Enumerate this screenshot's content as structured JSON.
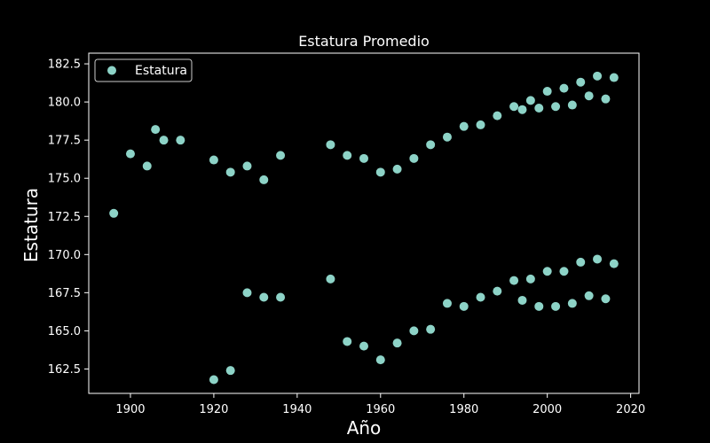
{
  "chart_data": {
    "type": "scatter",
    "title": "Estatura Promedio",
    "xlabel": "Año",
    "ylabel": "Estatura",
    "xlim": [
      1890,
      2022
    ],
    "ylim": [
      160.9,
      183.2
    ],
    "xticks": [
      1900,
      1920,
      1940,
      1960,
      1980,
      2000,
      2020
    ],
    "yticks": [
      162.5,
      165.0,
      167.5,
      170.0,
      172.5,
      175.0,
      177.5,
      180.0,
      182.5
    ],
    "xtick_labels": [
      "1900",
      "1920",
      "1940",
      "1960",
      "1980",
      "2000",
      "2020"
    ],
    "ytick_labels": [
      "162.5",
      "165.0",
      "167.5",
      "170.0",
      "172.5",
      "175.0",
      "177.5",
      "180.0",
      "182.5"
    ],
    "grid": false,
    "legend_position": "top-left",
    "colors": {
      "background": "#000000",
      "marker": "#8dd3c7",
      "text": "#ffffff"
    },
    "series": [
      {
        "name": "Estatura",
        "points": [
          [
            1896,
            172.7
          ],
          [
            1900,
            176.6
          ],
          [
            1904,
            175.8
          ],
          [
            1906,
            178.2
          ],
          [
            1908,
            177.5
          ],
          [
            1912,
            177.5
          ],
          [
            1920,
            176.2
          ],
          [
            1924,
            175.4
          ],
          [
            1928,
            175.8
          ],
          [
            1932,
            174.9
          ],
          [
            1936,
            176.5
          ],
          [
            1948,
            177.2
          ],
          [
            1952,
            176.5
          ],
          [
            1956,
            176.3
          ],
          [
            1960,
            175.4
          ],
          [
            1964,
            175.6
          ],
          [
            1968,
            176.3
          ],
          [
            1972,
            177.2
          ],
          [
            1976,
            177.7
          ],
          [
            1980,
            178.4
          ],
          [
            1984,
            178.5
          ],
          [
            1988,
            179.1
          ],
          [
            1992,
            179.7
          ],
          [
            1994,
            179.5
          ],
          [
            1996,
            180.1
          ],
          [
            1998,
            179.6
          ],
          [
            2000,
            180.7
          ],
          [
            2002,
            179.7
          ],
          [
            2004,
            180.9
          ],
          [
            2006,
            179.8
          ],
          [
            2008,
            181.3
          ],
          [
            2010,
            180.4
          ],
          [
            2012,
            181.7
          ],
          [
            2014,
            180.2
          ],
          [
            2016,
            181.6
          ],
          [
            1920,
            161.8
          ],
          [
            1924,
            162.4
          ],
          [
            1928,
            167.5
          ],
          [
            1932,
            167.2
          ],
          [
            1936,
            167.2
          ],
          [
            1948,
            168.4
          ],
          [
            1952,
            164.3
          ],
          [
            1956,
            164.0
          ],
          [
            1960,
            163.1
          ],
          [
            1964,
            164.2
          ],
          [
            1968,
            165.0
          ],
          [
            1972,
            165.1
          ],
          [
            1976,
            166.8
          ],
          [
            1980,
            166.6
          ],
          [
            1984,
            167.2
          ],
          [
            1988,
            167.6
          ],
          [
            1992,
            168.3
          ],
          [
            1994,
            167.0
          ],
          [
            1996,
            168.4
          ],
          [
            1998,
            166.6
          ],
          [
            2000,
            168.9
          ],
          [
            2002,
            166.6
          ],
          [
            2004,
            168.9
          ],
          [
            2006,
            166.8
          ],
          [
            2008,
            169.5
          ],
          [
            2010,
            167.3
          ],
          [
            2012,
            169.7
          ],
          [
            2014,
            167.1
          ],
          [
            2016,
            169.4
          ]
        ]
      }
    ]
  }
}
